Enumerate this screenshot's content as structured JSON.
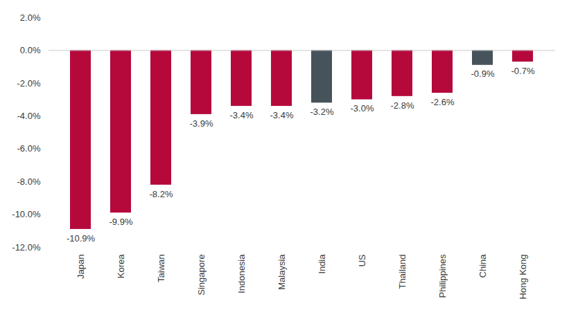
{
  "chart_data": {
    "type": "bar",
    "categories": [
      "Japan",
      "Korea",
      "Taiwan",
      "Singapore",
      "Indonesia",
      "Malaysia",
      "India",
      "US",
      "Thailand",
      "Philippines",
      "China",
      "Hong Kong"
    ],
    "values": [
      -10.9,
      -9.9,
      -8.2,
      -3.9,
      -3.4,
      -3.4,
      -3.2,
      -3.0,
      -2.8,
      -2.6,
      -0.9,
      -0.7
    ],
    "value_labels": [
      "-10.9%",
      "-9.9%",
      "-8.2%",
      "-3.9%",
      "-3.4%",
      "-3.4%",
      "-3.2%",
      "-3.0%",
      "-2.8%",
      "-2.6%",
      "-0.9%",
      "-0.7%"
    ],
    "colors": [
      "#b5093c",
      "#b5093c",
      "#b5093c",
      "#b5093c",
      "#b5093c",
      "#b5093c",
      "#46535b",
      "#b5093c",
      "#b5093c",
      "#b5093c",
      "#46535b",
      "#b5093c"
    ],
    "ylim": [
      -12,
      2
    ],
    "yticks": [
      {
        "value": -12,
        "label": "-12.0%"
      },
      {
        "value": -10,
        "label": "-10.0%"
      },
      {
        "value": -8,
        "label": "-8.0%"
      },
      {
        "value": -6,
        "label": "-6.0%"
      },
      {
        "value": -4,
        "label": "-4.0%"
      },
      {
        "value": -2,
        "label": "-2.0%"
      },
      {
        "value": 0,
        "label": "0.0%"
      },
      {
        "value": 2,
        "label": "2.0%"
      }
    ],
    "grid": false,
    "data_labels": true
  }
}
